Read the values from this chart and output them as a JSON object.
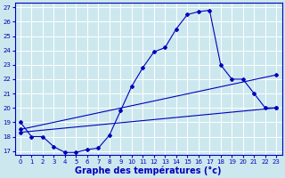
{
  "title": "Graphe des températures (°c)",
  "bg_color": "#cce8ee",
  "grid_color": "#ffffff",
  "line_color": "#0000bb",
  "xlim": [
    -0.5,
    23.5
  ],
  "ylim": [
    16.7,
    27.3
  ],
  "yticks": [
    17,
    18,
    19,
    20,
    21,
    22,
    23,
    24,
    25,
    26,
    27
  ],
  "xticks": [
    0,
    1,
    2,
    3,
    4,
    5,
    6,
    7,
    8,
    9,
    10,
    11,
    12,
    13,
    14,
    15,
    16,
    17,
    18,
    19,
    20,
    21,
    22,
    23
  ],
  "line1_x": [
    0,
    1,
    2,
    3,
    4,
    5,
    6,
    7,
    8,
    9,
    10,
    11,
    12,
    13,
    14,
    15,
    16,
    17,
    18,
    19,
    20,
    21,
    22,
    23
  ],
  "line1_y": [
    19.0,
    18.0,
    18.0,
    17.3,
    16.9,
    16.9,
    17.1,
    17.2,
    18.1,
    19.8,
    21.5,
    22.8,
    23.9,
    24.2,
    25.5,
    26.5,
    26.7,
    26.8,
    23.0,
    22.0,
    22.0,
    21.0,
    20.0,
    20.0
  ],
  "line2_x": [
    0,
    23
  ],
  "line2_y": [
    18.3,
    20.0
  ],
  "line3_x": [
    0,
    23
  ],
  "line3_y": [
    18.5,
    22.3
  ],
  "xlabel": "Graphe des températures (°c)",
  "title_fontsize": 7,
  "tick_fontsize": 5,
  "label_color": "#0000bb"
}
